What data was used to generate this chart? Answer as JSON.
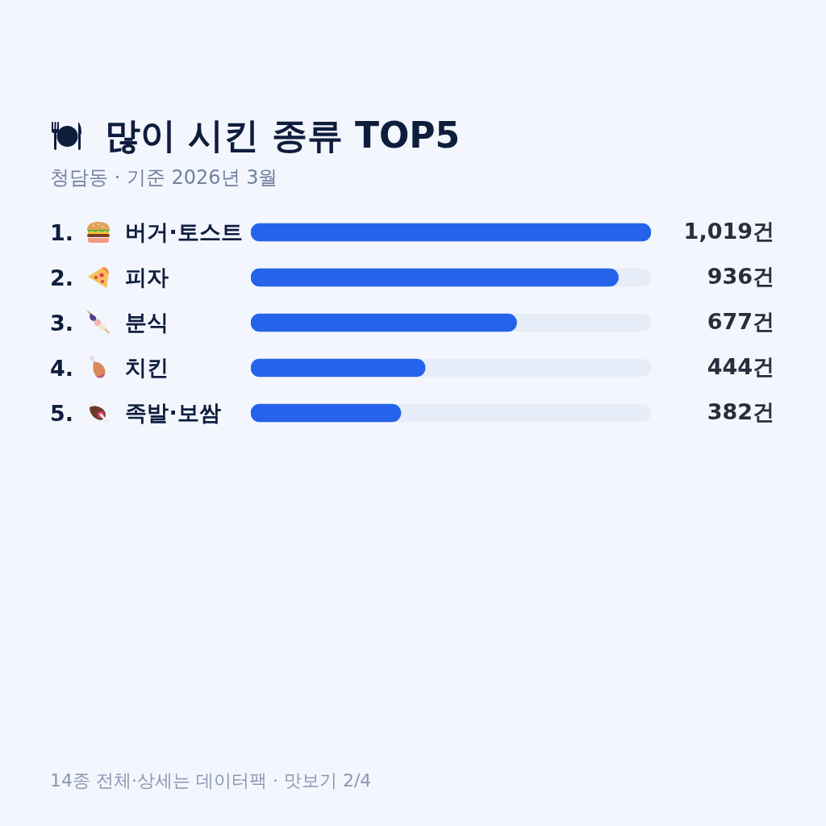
{
  "chart_data": {
    "type": "bar",
    "orientation": "horizontal",
    "title": "많이 시킨 종류 TOP5",
    "subtitle": "청담동 · 기준 2026년 3월",
    "categories": [
      "1. 버거·토스트",
      "2. 피자",
      "3. 분식",
      "4. 치킨",
      "5. 족발·보쌈"
    ],
    "values": [
      1019,
      936,
      677,
      444,
      382
    ],
    "value_labels": [
      "1,019건",
      "936건",
      "677건",
      "444건",
      "382건"
    ],
    "color": "#2563eb",
    "xlim": [
      0,
      1019
    ],
    "tick_labels": "y",
    "annotations": [
      "14종 전체·상세는 데이터팩 · 맛보기 2/4"
    ]
  }
}
